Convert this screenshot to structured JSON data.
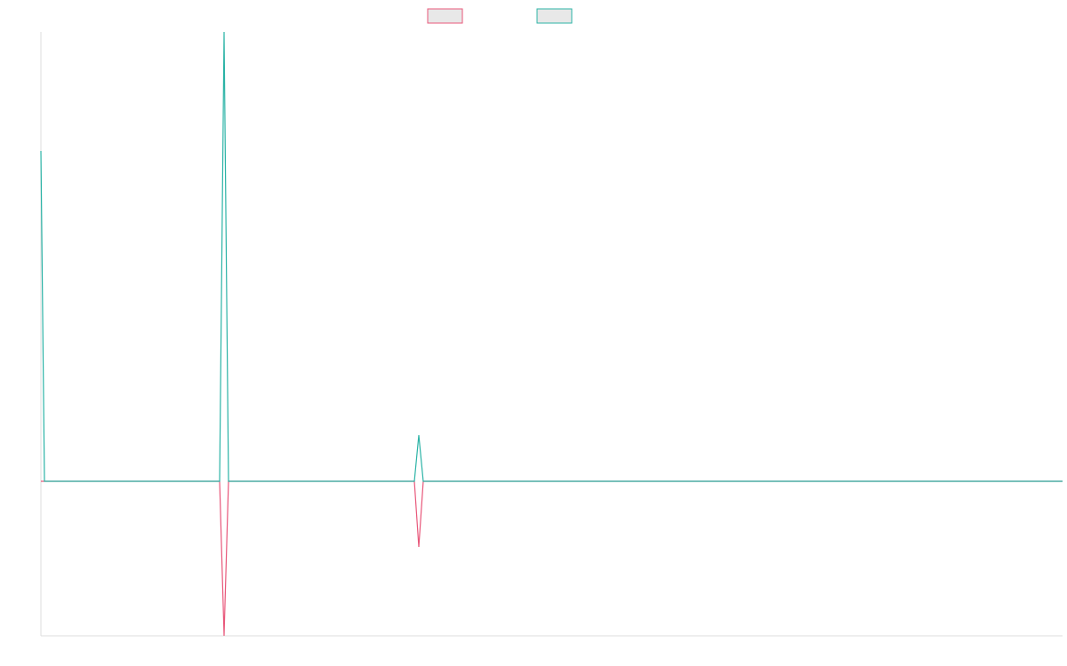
{
  "chart_data": {
    "type": "line",
    "x": [
      0,
      4,
      54,
      159,
      201,
      206,
      211,
      366,
      420,
      425,
      430,
      1149
    ],
    "xlim": [
      0,
      1149
    ],
    "ylim": [
      -174,
      506
    ],
    "series": [
      {
        "color": "#e8577a",
        "values": [
          0,
          0,
          0,
          0,
          0,
          -174,
          0,
          0,
          0,
          -74,
          0,
          0
        ]
      },
      {
        "color": "#2bb3a6",
        "values": [
          372,
          0,
          0,
          0,
          0,
          506,
          0,
          0,
          0,
          52,
          0,
          0
        ]
      }
    ]
  }
}
